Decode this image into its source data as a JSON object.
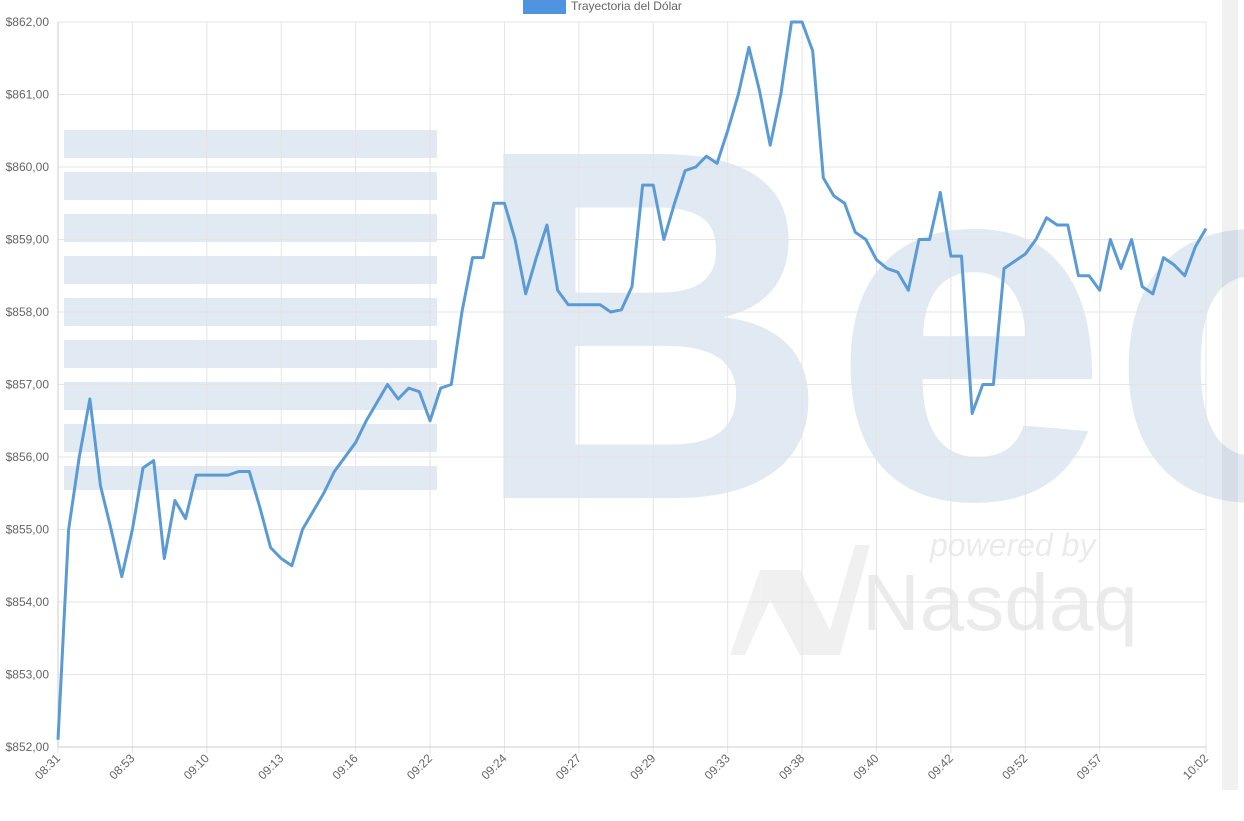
{
  "chart_data": {
    "type": "line",
    "legend": "top",
    "watermark": {
      "logo": "Bec",
      "tagline": "powered by",
      "brand": "Nasdaq"
    },
    "categories": [
      "08:31",
      null,
      null,
      null,
      null,
      null,
      null,
      "08:53",
      null,
      null,
      null,
      null,
      null,
      null,
      "09:10",
      null,
      null,
      null,
      null,
      null,
      null,
      "09:13",
      null,
      null,
      null,
      null,
      null,
      null,
      "09:16",
      null,
      null,
      null,
      null,
      null,
      null,
      "09:22",
      null,
      null,
      null,
      null,
      null,
      null,
      "09:24",
      null,
      null,
      null,
      null,
      null,
      null,
      "09:27",
      null,
      null,
      null,
      null,
      null,
      null,
      "09:29",
      null,
      null,
      null,
      null,
      null,
      null,
      "09:33",
      null,
      null,
      null,
      null,
      null,
      null,
      "09:38",
      null,
      null,
      null,
      null,
      null,
      null,
      "09:40",
      null,
      null,
      null,
      null,
      null,
      null,
      "09:42",
      null,
      null,
      null,
      null,
      null,
      null,
      "09:52",
      null,
      null,
      null,
      null,
      null,
      null,
      "09:57",
      null,
      null,
      null,
      null,
      null,
      null,
      null,
      null,
      null,
      "10:02"
    ],
    "series": [
      {
        "name": "Trayectoria del Dólar",
        "color": "#5b9bd5",
        "legend_color": "#4f94e0",
        "values": [
          852.1,
          855.0,
          856.0,
          856.8,
          855.6,
          855.0,
          854.35,
          855.0,
          855.85,
          855.95,
          854.6,
          855.4,
          855.15,
          855.75,
          855.75,
          855.75,
          855.75,
          855.8,
          855.8,
          855.3,
          854.75,
          854.6,
          854.5,
          855.0,
          855.25,
          855.5,
          855.8,
          856.0,
          856.2,
          856.5,
          856.75,
          857.0,
          856.8,
          856.95,
          856.9,
          856.5,
          856.95,
          857.0,
          858.0,
          858.75,
          858.75,
          859.5,
          859.5,
          859.0,
          858.25,
          858.75,
          859.2,
          858.3,
          858.1,
          858.1,
          858.1,
          858.1,
          858.0,
          858.03,
          858.35,
          859.75,
          859.75,
          859.0,
          859.5,
          859.95,
          860.0,
          860.15,
          860.05,
          860.5,
          861.0,
          861.65,
          861.05,
          860.3,
          861.0,
          862.0,
          862.0,
          861.6,
          859.85,
          859.6,
          859.5,
          859.1,
          859.0,
          858.72,
          858.6,
          858.55,
          858.3,
          859.0,
          859.0,
          859.65,
          858.77,
          858.77,
          856.6,
          857.0,
          857.0,
          858.6,
          858.7,
          858.8,
          859.0,
          859.3,
          859.2,
          859.2,
          858.5,
          858.5,
          858.3,
          859.0,
          858.6,
          859.0,
          858.35,
          858.25,
          858.75,
          858.65,
          858.5,
          858.9,
          859.15
        ]
      }
    ],
    "ylim": [
      852,
      862
    ],
    "yticks": [
      {
        "value": 852,
        "label": "$852,00"
      },
      {
        "value": 853,
        "label": "$853,00"
      },
      {
        "value": 854,
        "label": "$854,00"
      },
      {
        "value": 855,
        "label": "$855,00"
      },
      {
        "value": 856,
        "label": "$856,00"
      },
      {
        "value": 857,
        "label": "$857,00"
      },
      {
        "value": 858,
        "label": "$858,00"
      },
      {
        "value": 859,
        "label": "$859,00"
      },
      {
        "value": 860,
        "label": "$860,00"
      },
      {
        "value": 861,
        "label": "$861,00"
      },
      {
        "value": 862,
        "label": "$862,00"
      }
    ],
    "grid": true
  }
}
